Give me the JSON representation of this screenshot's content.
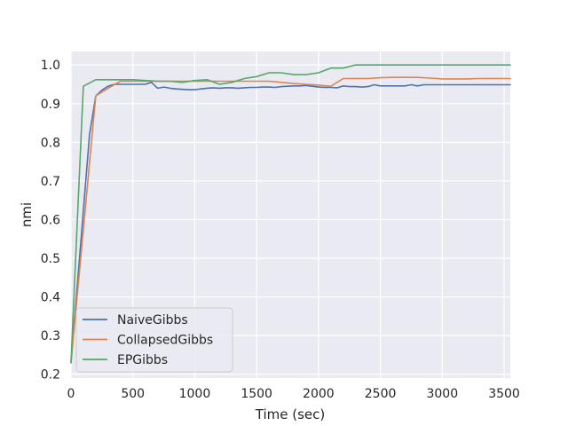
{
  "chart_data": {
    "type": "line",
    "title": "",
    "xlabel": "Time (sec)",
    "ylabel": "nmi",
    "xlim": [
      0,
      3550
    ],
    "ylim": [
      0.19,
      1.035
    ],
    "xticks": [
      0,
      500,
      1000,
      1500,
      2000,
      2500,
      3000,
      3500
    ],
    "yticks": [
      0.2,
      0.3,
      0.4,
      0.5,
      0.6,
      0.7,
      0.8,
      0.9,
      1.0
    ],
    "xtick_labels": [
      "0",
      "500",
      "1000",
      "1500",
      "2000",
      "2500",
      "3000",
      "3500"
    ],
    "ytick_labels": [
      "0.2",
      "0.3",
      "0.4",
      "0.5",
      "0.6",
      "0.7",
      "0.8",
      "0.9",
      "1.0"
    ],
    "grid": true,
    "background": "#eaeaf2",
    "legend_position": "bottom-left",
    "series": [
      {
        "name": "NaiveGibbs",
        "color": "#4c72b0",
        "x": [
          0,
          150,
          200,
          250,
          300,
          350,
          400,
          500,
          600,
          650,
          700,
          750,
          800,
          850,
          900,
          950,
          1000,
          1050,
          1100,
          1150,
          1200,
          1250,
          1300,
          1350,
          1400,
          1450,
          1500,
          1550,
          1600,
          1650,
          1700,
          1750,
          1800,
          1850,
          1900,
          1950,
          2000,
          2050,
          2100,
          2150,
          2200,
          2250,
          2300,
          2350,
          2400,
          2450,
          2500,
          2550,
          2600,
          2650,
          2700,
          2750,
          2800,
          2850,
          2900,
          3000,
          3100,
          3200,
          3300,
          3400,
          3500,
          3550
        ],
        "y": [
          0.23,
          0.82,
          0.92,
          0.935,
          0.945,
          0.95,
          0.95,
          0.95,
          0.95,
          0.955,
          0.94,
          0.943,
          0.94,
          0.938,
          0.937,
          0.936,
          0.936,
          0.938,
          0.94,
          0.941,
          0.94,
          0.941,
          0.941,
          0.94,
          0.941,
          0.942,
          0.942,
          0.943,
          0.943,
          0.942,
          0.944,
          0.945,
          0.946,
          0.946,
          0.947,
          0.945,
          0.943,
          0.942,
          0.942,
          0.941,
          0.946,
          0.944,
          0.944,
          0.943,
          0.944,
          0.949,
          0.946,
          0.946,
          0.946,
          0.946,
          0.946,
          0.949,
          0.946,
          0.949,
          0.949,
          0.949,
          0.949,
          0.949,
          0.949,
          0.949,
          0.949,
          0.949
        ]
      },
      {
        "name": "CollapsedGibbs",
        "color": "#dd8452",
        "x": [
          0,
          200,
          300,
          400,
          500,
          600,
          700,
          800,
          900,
          1000,
          1100,
          1200,
          1300,
          1400,
          1500,
          1600,
          1700,
          1800,
          1900,
          2000,
          2100,
          2200,
          2300,
          2400,
          2500,
          2600,
          2700,
          2800,
          2900,
          3000,
          3100,
          3200,
          3300,
          3400,
          3500,
          3550
        ],
        "y": [
          0.23,
          0.92,
          0.94,
          0.958,
          0.958,
          0.958,
          0.958,
          0.958,
          0.958,
          0.958,
          0.958,
          0.958,
          0.958,
          0.958,
          0.958,
          0.958,
          0.955,
          0.952,
          0.95,
          0.948,
          0.945,
          0.965,
          0.965,
          0.965,
          0.967,
          0.968,
          0.968,
          0.968,
          0.966,
          0.964,
          0.964,
          0.964,
          0.965,
          0.965,
          0.965,
          0.965
        ]
      },
      {
        "name": "EPGibbs",
        "color": "#55a868",
        "x": [
          0,
          100,
          200,
          300,
          400,
          500,
          600,
          700,
          800,
          900,
          1000,
          1100,
          1200,
          1300,
          1400,
          1500,
          1600,
          1700,
          1800,
          1900,
          2000,
          2100,
          2200,
          2300,
          2400,
          2500,
          2600,
          2700,
          2800,
          2900,
          3000,
          3100,
          3200,
          3300,
          3400,
          3500,
          3550
        ],
        "y": [
          0.23,
          0.945,
          0.962,
          0.962,
          0.962,
          0.962,
          0.96,
          0.958,
          0.958,
          0.955,
          0.96,
          0.962,
          0.95,
          0.955,
          0.965,
          0.97,
          0.98,
          0.98,
          0.975,
          0.975,
          0.98,
          0.992,
          0.992,
          1.0,
          1.0,
          1.0,
          1.0,
          1.0,
          1.0,
          1.0,
          1.0,
          1.0,
          1.0,
          1.0,
          1.0,
          1.0,
          1.0
        ]
      }
    ]
  }
}
